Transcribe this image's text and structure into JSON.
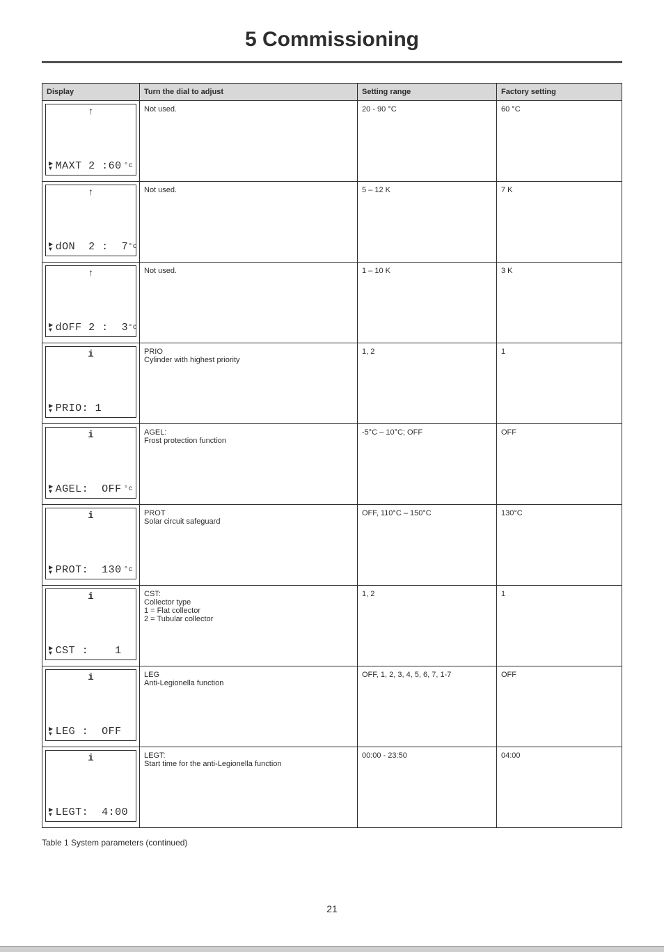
{
  "page": {
    "title": "5 Commissioning",
    "caption": "Table 1 System parameters (continued)",
    "number": "21"
  },
  "table": {
    "headers": {
      "display": "Display",
      "dial": "Turn the dial to adjust",
      "range": "Setting range",
      "factory": "Factory setting"
    },
    "rows": [
      {
        "tick": "↑",
        "seg": "MAXT 2 :60",
        "segSuffix": "°c",
        "dial": "Not used.",
        "range": "20 - 90 °C",
        "factory": "60 °C"
      },
      {
        "tick": "↑",
        "seg": "dON  2 :  7",
        "segSuffix": "°c",
        "dial": "Not used.",
        "range": "5 – 12 K",
        "factory": "7 K"
      },
      {
        "tick": "↑",
        "seg": "dOFF 2 :  3",
        "segSuffix": "°c",
        "dial": "Not used.",
        "range": "1 – 10 K",
        "factory": "3 K"
      },
      {
        "tick": "i",
        "seg": "PRIO: 1",
        "segSuffix": "",
        "dial": "PRIO\nCylinder with highest priority",
        "range": "1, 2",
        "factory": "1"
      },
      {
        "tick": "i",
        "seg": "AGEL:  OFF",
        "segSuffix": "°c",
        "dial": "AGEL:\nFrost protection function",
        "range": "-5°C – 10°C; OFF",
        "factory": "OFF"
      },
      {
        "tick": "i",
        "seg": "PROT:  130",
        "segSuffix": "°c",
        "dial": "PROT\nSolar circuit safeguard",
        "range": "OFF, 110°C – 150°C",
        "factory": "130°C"
      },
      {
        "tick": "i",
        "seg": "CST :    1",
        "segSuffix": "",
        "dial": "CST:\nCollector type\n1 = Flat collector\n2 = Tubular collector",
        "range": "1, 2",
        "factory": "1"
      },
      {
        "tick": "i",
        "seg": "LEG :  OFF",
        "segSuffix": "",
        "dial": "LEG\nAnti-Legionella function",
        "range": "OFF, 1, 2, 3, 4, 5, 6, 7, 1-7",
        "factory": "OFF"
      },
      {
        "tick": "i",
        "seg": "LEGT:  4:00",
        "segSuffix": "",
        "dial": "LEGT:\nStart time for the anti-Legionella function",
        "range": "00:00 - 23:50",
        "factory": "04:00"
      }
    ]
  },
  "style": {
    "header_bg": "#d8d8d8",
    "text_color": "#2d2d2d",
    "border_color": "#2d2d2d"
  }
}
